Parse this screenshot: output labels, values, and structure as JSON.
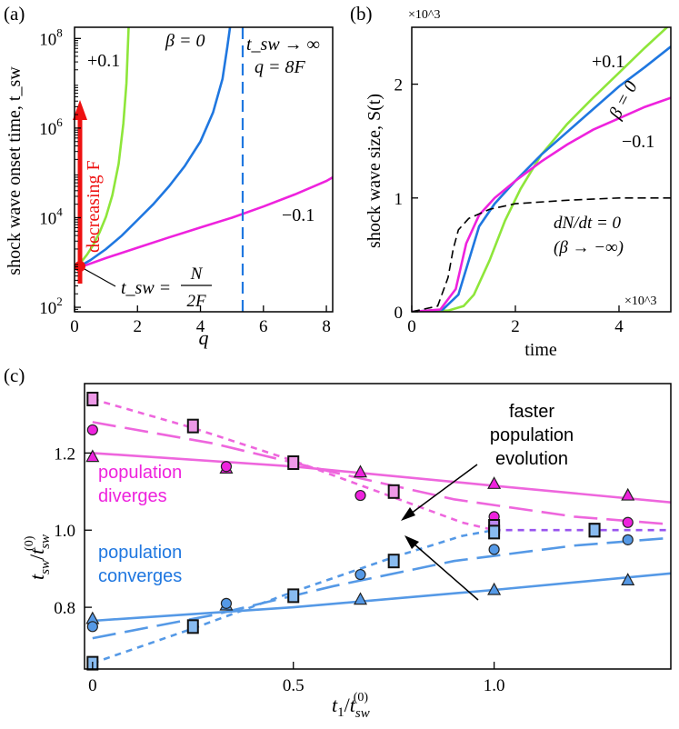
{
  "colors": {
    "green": "#8ee63a",
    "blue": "#1f77e0",
    "magenta": "#ee22dd",
    "lightblue": "#5599e6",
    "pink": "#ee66dd",
    "purple": "#9955ee",
    "pinkfill": "#ee99e8",
    "bluefill": "#88bbf0",
    "red": "#ee1111"
  },
  "chart_data": [
    {
      "type": "line",
      "panel": "(a)",
      "xlabel": "q",
      "ylabel": "shock wave onset time, t_sw",
      "xlim": [
        0,
        8.2
      ],
      "ylim_log10": [
        1.9,
        8.25
      ],
      "yscale": "log",
      "xticks": [
        "0",
        "2",
        "4",
        "6",
        "8"
      ],
      "yticks": [
        "10^2",
        "10^4",
        "10^6",
        "10^8"
      ],
      "grid": false,
      "series": [
        {
          "name": "+0.1",
          "color": "green",
          "points": [
            [
              0,
              2.85
            ],
            [
              0.2,
              3.0
            ],
            [
              0.4,
              3.18
            ],
            [
              0.6,
              3.4
            ],
            [
              0.8,
              3.68
            ],
            [
              1.0,
              4.02
            ],
            [
              1.2,
              4.5
            ],
            [
              1.4,
              5.2
            ],
            [
              1.55,
              6.1
            ],
            [
              1.65,
              7.0
            ],
            [
              1.72,
              8.3
            ]
          ]
        },
        {
          "name": "β = 0",
          "color": "blue",
          "points": [
            [
              0,
              2.85
            ],
            [
              0.5,
              3.05
            ],
            [
              1.0,
              3.3
            ],
            [
              1.5,
              3.6
            ],
            [
              2.0,
              3.95
            ],
            [
              2.5,
              4.3
            ],
            [
              3.0,
              4.7
            ],
            [
              3.5,
              5.15
            ],
            [
              4.0,
              5.7
            ],
            [
              4.4,
              6.35
            ],
            [
              4.7,
              7.1
            ],
            [
              4.85,
              7.8
            ],
            [
              4.95,
              8.3
            ]
          ]
        },
        {
          "name": "−0.1",
          "color": "magenta",
          "points": [
            [
              0,
              2.85
            ],
            [
              1,
              3.1
            ],
            [
              2,
              3.33
            ],
            [
              3,
              3.56
            ],
            [
              4,
              3.78
            ],
            [
              5,
              4.0
            ],
            [
              6,
              4.25
            ],
            [
              7,
              4.52
            ],
            [
              8,
              4.82
            ],
            [
              8.2,
              4.9
            ]
          ]
        }
      ],
      "annotations": {
        "label_plus": "+0.1",
        "label_beta_a": "β = 0",
        "label_minus": "−0.1",
        "tsw_inf_line1": "t_sw → ∞",
        "tsw_inf_line2": "q = 8F",
        "decreasing": "decreasing F",
        "tsw_eq_lhs": "t_sw =",
        "tsw_num": "N",
        "tsw_den": "2F"
      }
    },
    {
      "type": "line",
      "panel": "(b)",
      "xlabel": "time",
      "ylabel": "shock wave size, S(t)",
      "xlim": [
        0,
        5
      ],
      "ylim": [
        0,
        2.5
      ],
      "multiplier_x": "×10^3",
      "multiplier_y": "×10^3",
      "xticks": [
        "0",
        "2",
        "4"
      ],
      "yticks": [
        "0",
        "1",
        "2"
      ],
      "grid": false,
      "series": [
        {
          "name": "+0.1",
          "color": "green",
          "points": [
            [
              0,
              0
            ],
            [
              0.7,
              0.01
            ],
            [
              1.0,
              0.05
            ],
            [
              1.2,
              0.15
            ],
            [
              1.5,
              0.45
            ],
            [
              1.8,
              0.8
            ],
            [
              2.1,
              1.08
            ],
            [
              2.5,
              1.38
            ],
            [
              3.0,
              1.65
            ],
            [
              3.5,
              1.88
            ],
            [
              4.0,
              2.1
            ],
            [
              4.5,
              2.32
            ],
            [
              5.0,
              2.53
            ]
          ]
        },
        {
          "name": "β = 0",
          "color": "blue",
          "points": [
            [
              0,
              0
            ],
            [
              0.6,
              0.02
            ],
            [
              0.9,
              0.15
            ],
            [
              1.1,
              0.45
            ],
            [
              1.3,
              0.75
            ],
            [
              1.6,
              0.95
            ],
            [
              2.0,
              1.15
            ],
            [
              2.5,
              1.38
            ],
            [
              3.0,
              1.58
            ],
            [
              3.5,
              1.78
            ],
            [
              4.0,
              1.98
            ],
            [
              4.5,
              2.15
            ],
            [
              5.0,
              2.33
            ]
          ]
        },
        {
          "name": "−0.1",
          "color": "magenta",
          "points": [
            [
              0,
              0
            ],
            [
              0.55,
              0.02
            ],
            [
              0.85,
              0.2
            ],
            [
              1.05,
              0.6
            ],
            [
              1.3,
              0.85
            ],
            [
              1.6,
              1.0
            ],
            [
              2.0,
              1.15
            ],
            [
              2.5,
              1.32
            ],
            [
              3.0,
              1.47
            ],
            [
              3.5,
              1.6
            ],
            [
              4.0,
              1.7
            ],
            [
              4.5,
              1.8
            ],
            [
              5.0,
              1.88
            ]
          ]
        },
        {
          "name": "dN/dt = 0 (β → −∞)",
          "color": "black",
          "dashed": true,
          "points": [
            [
              0,
              0
            ],
            [
              0.5,
              0.05
            ],
            [
              0.7,
              0.3
            ],
            [
              0.8,
              0.55
            ],
            [
              0.9,
              0.72
            ],
            [
              1.1,
              0.82
            ],
            [
              1.5,
              0.9
            ],
            [
              2.0,
              0.95
            ],
            [
              3.0,
              0.98
            ],
            [
              4.0,
              1.0
            ],
            [
              5.0,
              1.0
            ]
          ]
        }
      ],
      "annotations": {
        "label_plus": "+0.1",
        "label_beta_b": "β = 0",
        "label_minus": "−0.1",
        "dndt_line1": "dN/dt = 0",
        "dndt_line2": "(β → −∞)"
      }
    },
    {
      "type": "scatter",
      "panel": "(c)",
      "xlabel": "t_1/t_sw^(0)",
      "ylabel": "t_sw/t_sw^(0)",
      "xlim": [
        -0.02,
        1.44
      ],
      "ylim": [
        0.64,
        1.38
      ],
      "xticks": [
        "0",
        "0.5",
        "1.0"
      ],
      "yticks": [
        "0.8",
        "1.0",
        "1.2"
      ],
      "grid": false,
      "series": [
        {
          "group": "diverges",
          "marker": "triangle",
          "points": [
            [
              0,
              1.19
            ],
            [
              0.333,
              1.16
            ],
            [
              0.667,
              1.15
            ],
            [
              1.0,
              1.12
            ],
            [
              1.333,
              1.09
            ]
          ]
        },
        {
          "group": "diverges",
          "marker": "circle",
          "points": [
            [
              0,
              1.26
            ],
            [
              0.333,
              1.165
            ],
            [
              0.667,
              1.09
            ],
            [
              1.0,
              1.035
            ],
            [
              1.333,
              1.02
            ]
          ]
        },
        {
          "group": "diverges",
          "marker": "square",
          "points": [
            [
              0,
              1.34
            ],
            [
              0.25,
              1.27
            ],
            [
              0.5,
              1.175
            ],
            [
              0.75,
              1.1
            ],
            [
              1.0,
              1.01
            ],
            [
              1.25,
              1.0
            ]
          ]
        },
        {
          "group": "converges",
          "marker": "triangle",
          "points": [
            [
              0,
              0.77
            ],
            [
              0.333,
              0.805
            ],
            [
              0.667,
              0.82
            ],
            [
              1.0,
              0.845
            ],
            [
              1.333,
              0.87
            ]
          ]
        },
        {
          "group": "converges",
          "marker": "circle",
          "points": [
            [
              0,
              0.75
            ],
            [
              0.333,
              0.81
            ],
            [
              0.667,
              0.885
            ],
            [
              1.0,
              0.95
            ],
            [
              1.333,
              0.975
            ]
          ]
        },
        {
          "group": "converges",
          "marker": "square",
          "points": [
            [
              0,
              0.655
            ],
            [
              0.25,
              0.75
            ],
            [
              0.5,
              0.83
            ],
            [
              0.75,
              0.92
            ],
            [
              1.0,
              0.995
            ],
            [
              1.25,
              1.0
            ]
          ]
        }
      ],
      "fits": [
        {
          "color": "pink",
          "style": "solid",
          "points": [
            [
              0,
              1.2
            ],
            [
              0.5,
              1.165
            ],
            [
              1.0,
              1.115
            ],
            [
              1.44,
              1.072
            ]
          ]
        },
        {
          "color": "pink",
          "style": "longdash",
          "points": [
            [
              0,
              1.28
            ],
            [
              0.3,
              1.225
            ],
            [
              0.6,
              1.15
            ],
            [
              0.9,
              1.08
            ],
            [
              1.2,
              1.035
            ],
            [
              1.44,
              1.015
            ]
          ]
        },
        {
          "color": "pink",
          "style": "shortdash",
          "points": [
            [
              0,
              1.34
            ],
            [
              0.25,
              1.265
            ],
            [
              0.5,
              1.18
            ],
            [
              0.75,
              1.085
            ],
            [
              0.92,
              1.02
            ],
            [
              1.0,
              1.0
            ]
          ]
        },
        {
          "color": "purple",
          "style": "shortdash",
          "points": [
            [
              1.0,
              1.0
            ],
            [
              1.44,
              1.0
            ]
          ]
        },
        {
          "color": "lightblue",
          "style": "solid",
          "points": [
            [
              0,
              0.765
            ],
            [
              0.5,
              0.8
            ],
            [
              1.0,
              0.845
            ],
            [
              1.44,
              0.888
            ]
          ]
        },
        {
          "color": "lightblue",
          "style": "longdash",
          "points": [
            [
              0,
              0.72
            ],
            [
              0.3,
              0.78
            ],
            [
              0.6,
              0.855
            ],
            [
              0.9,
              0.92
            ],
            [
              1.2,
              0.96
            ],
            [
              1.44,
              0.98
            ]
          ]
        },
        {
          "color": "lightblue",
          "style": "shortdash",
          "points": [
            [
              0,
              0.655
            ],
            [
              0.25,
              0.745
            ],
            [
              0.5,
              0.84
            ],
            [
              0.75,
              0.93
            ],
            [
              0.92,
              0.985
            ],
            [
              1.0,
              1.0
            ]
          ]
        }
      ],
      "annotations": {
        "faster_1": "faster",
        "faster_2": "population",
        "faster_3": "evolution",
        "div_1": "population",
        "div_2": "diverges",
        "conv_1": "population",
        "conv_2": "converges"
      }
    }
  ]
}
